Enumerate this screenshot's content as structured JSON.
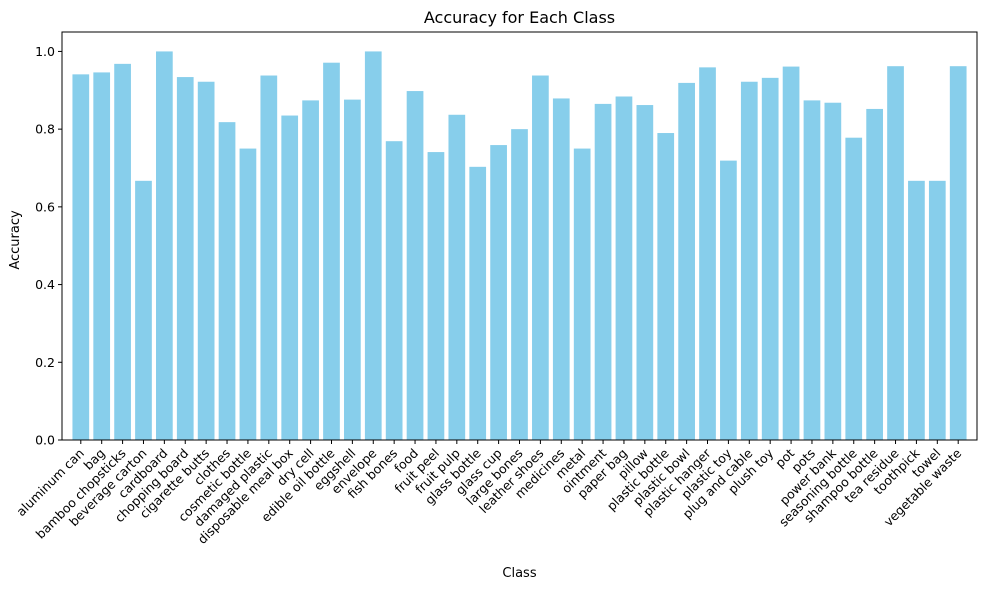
{
  "chart_data": {
    "type": "bar",
    "title": "Accuracy for Each Class",
    "xlabel": "Class",
    "ylabel": "Accuracy",
    "ylim": [
      0,
      1.05
    ],
    "yticks": [
      "0.0",
      "0.2",
      "0.4",
      "0.6",
      "0.8",
      "1.0"
    ],
    "grid": false,
    "bar_color": "#87ceeb",
    "categories": [
      "aluminum can",
      "bag",
      "bamboo chopsticks",
      "beverage carton",
      "cardboard",
      "chopping board",
      "cigarette butts",
      "clothes",
      "cosmetic bottle",
      "damaged plastic",
      "disposable meal box",
      "dry cell",
      "edible oil bottle",
      "eggshell",
      "envelope",
      "fish bones",
      "food",
      "fruit peel",
      "fruit pulp",
      "glass bottle",
      "glass cup",
      "large bones",
      "leather shoes",
      "medicines",
      "metal",
      "ointment",
      "paper bag",
      "pillow",
      "plastic bottle",
      "plastic bowl",
      "plastic hanger",
      "plastic toy",
      "plug and cable",
      "plush toy",
      "pot",
      "pots",
      "power bank",
      "seasoning bottle",
      "shampoo bottle",
      "tea residue",
      "toothpick",
      "towel",
      "vegetable waste"
    ],
    "values": [
      0.941,
      0.946,
      0.968,
      0.667,
      1.0,
      0.934,
      0.922,
      0.818,
      0.75,
      0.938,
      0.835,
      0.874,
      0.971,
      0.876,
      1.0,
      0.769,
      0.898,
      0.741,
      0.837,
      0.703,
      0.759,
      0.8,
      0.938,
      0.879,
      0.75,
      0.865,
      0.884,
      0.862,
      0.79,
      0.919,
      0.959,
      0.719,
      0.922,
      0.932,
      0.961,
      0.874,
      0.868,
      0.778,
      0.852,
      0.962,
      0.667,
      0.667,
      0.962
    ]
  }
}
